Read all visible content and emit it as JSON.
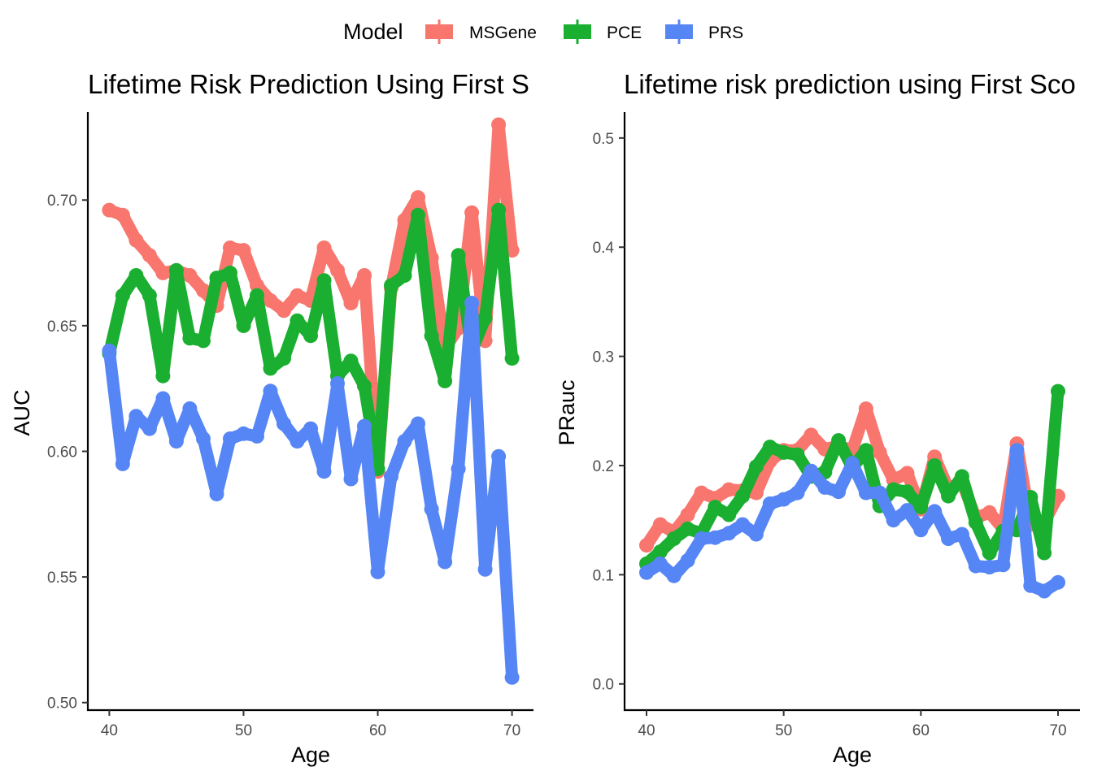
{
  "legend": {
    "title": "Model",
    "entries": [
      {
        "name": "MSGene",
        "color": "#F8766D"
      },
      {
        "name": "PCE",
        "color": "#1AAF30"
      },
      {
        "name": "PRS",
        "color": "#5686F5"
      }
    ]
  },
  "chart_data": [
    {
      "type": "line",
      "title": "Lifetime Risk Prediction Using First S",
      "xlabel": "Age",
      "ylabel": "AUC",
      "xlim": [
        38.4,
        71.6
      ],
      "ylim": [
        0.497,
        0.735
      ],
      "xticks": [
        40,
        50,
        60,
        70
      ],
      "yticks": [
        0.5,
        0.55,
        0.6,
        0.65,
        0.7
      ],
      "ytick_labels": [
        "0.50",
        "0.55",
        "0.60",
        "0.65",
        "0.70"
      ],
      "grid": false,
      "legend_position": "top",
      "x": [
        40,
        41,
        42,
        43,
        44,
        45,
        46,
        47,
        48,
        49,
        50,
        51,
        52,
        53,
        54,
        55,
        56,
        57,
        58,
        59,
        60,
        61,
        62,
        63,
        64,
        65,
        66,
        67,
        68,
        69,
        70
      ],
      "series": [
        {
          "name": "MSGene",
          "color": "#F8766D",
          "values": [
            0.696,
            0.694,
            0.684,
            0.678,
            0.671,
            0.672,
            0.67,
            0.664,
            0.658,
            0.681,
            0.68,
            0.666,
            0.66,
            0.656,
            0.662,
            0.66,
            0.681,
            0.672,
            0.659,
            0.67,
            0.592,
            0.665,
            0.692,
            0.701,
            0.677,
            0.641,
            0.649,
            0.695,
            0.644,
            0.73,
            0.68
          ]
        },
        {
          "name": "PCE",
          "color": "#1AAF30",
          "values": [
            0.639,
            0.662,
            0.67,
            0.662,
            0.63,
            0.672,
            0.645,
            0.644,
            0.669,
            0.671,
            0.65,
            0.662,
            0.633,
            0.637,
            0.652,
            0.646,
            0.668,
            0.63,
            0.636,
            0.626,
            0.593,
            0.666,
            0.67,
            0.694,
            0.646,
            0.628,
            0.678,
            0.64,
            0.653,
            0.696,
            0.637
          ]
        },
        {
          "name": "PRS",
          "color": "#5686F5",
          "values": [
            0.64,
            0.595,
            0.614,
            0.609,
            0.621,
            0.604,
            0.617,
            0.605,
            0.583,
            0.605,
            0.607,
            0.606,
            0.624,
            0.611,
            0.604,
            0.609,
            0.592,
            0.627,
            0.589,
            0.61,
            0.552,
            0.59,
            0.604,
            0.611,
            0.577,
            0.556,
            0.593,
            0.659,
            0.553,
            0.598,
            0.51
          ]
        }
      ]
    },
    {
      "type": "line",
      "title": "Lifetime risk prediction using First Sco",
      "xlabel": "Age",
      "ylabel": "PRauc",
      "xlim": [
        38.4,
        71.6
      ],
      "ylim": [
        -0.024,
        0.5237
      ],
      "xticks": [
        40,
        50,
        60,
        70
      ],
      "yticks": [
        0.0,
        0.1,
        0.2,
        0.3,
        0.4,
        0.5
      ],
      "ytick_labels": [
        "0.0",
        "0.1",
        "0.2",
        "0.3",
        "0.4",
        "0.5"
      ],
      "grid": false,
      "legend_position": "top",
      "x": [
        40,
        41,
        42,
        43,
        44,
        45,
        46,
        47,
        48,
        49,
        50,
        51,
        52,
        53,
        54,
        55,
        56,
        57,
        58,
        59,
        60,
        61,
        62,
        63,
        64,
        65,
        66,
        67,
        68,
        69,
        70
      ],
      "series": [
        {
          "name": "MSGene",
          "color": "#F8766D",
          "values": [
            0.127,
            0.146,
            0.139,
            0.155,
            0.175,
            0.17,
            0.178,
            0.177,
            0.175,
            0.204,
            0.214,
            0.214,
            0.228,
            0.215,
            0.218,
            0.214,
            0.252,
            0.212,
            0.187,
            0.193,
            0.16,
            0.208,
            0.179,
            0.185,
            0.152,
            0.157,
            0.142,
            0.22,
            0.146,
            0.148,
            0.172
          ]
        },
        {
          "name": "PCE",
          "color": "#1AAF30",
          "values": [
            0.11,
            0.121,
            0.133,
            0.142,
            0.138,
            0.162,
            0.155,
            0.172,
            0.199,
            0.217,
            0.212,
            0.21,
            0.19,
            0.194,
            0.223,
            0.198,
            0.214,
            0.163,
            0.178,
            0.176,
            0.162,
            0.2,
            0.172,
            0.19,
            0.148,
            0.12,
            0.14,
            0.141,
            0.171,
            0.12,
            0.268
          ]
        },
        {
          "name": "PRS",
          "color": "#5686F5",
          "values": [
            0.102,
            0.11,
            0.099,
            0.113,
            0.133,
            0.134,
            0.138,
            0.146,
            0.137,
            0.165,
            0.169,
            0.175,
            0.195,
            0.18,
            0.176,
            0.202,
            0.175,
            0.175,
            0.15,
            0.159,
            0.141,
            0.158,
            0.133,
            0.137,
            0.108,
            0.107,
            0.109,
            0.214,
            0.09,
            0.085,
            0.093
          ]
        }
      ]
    }
  ]
}
